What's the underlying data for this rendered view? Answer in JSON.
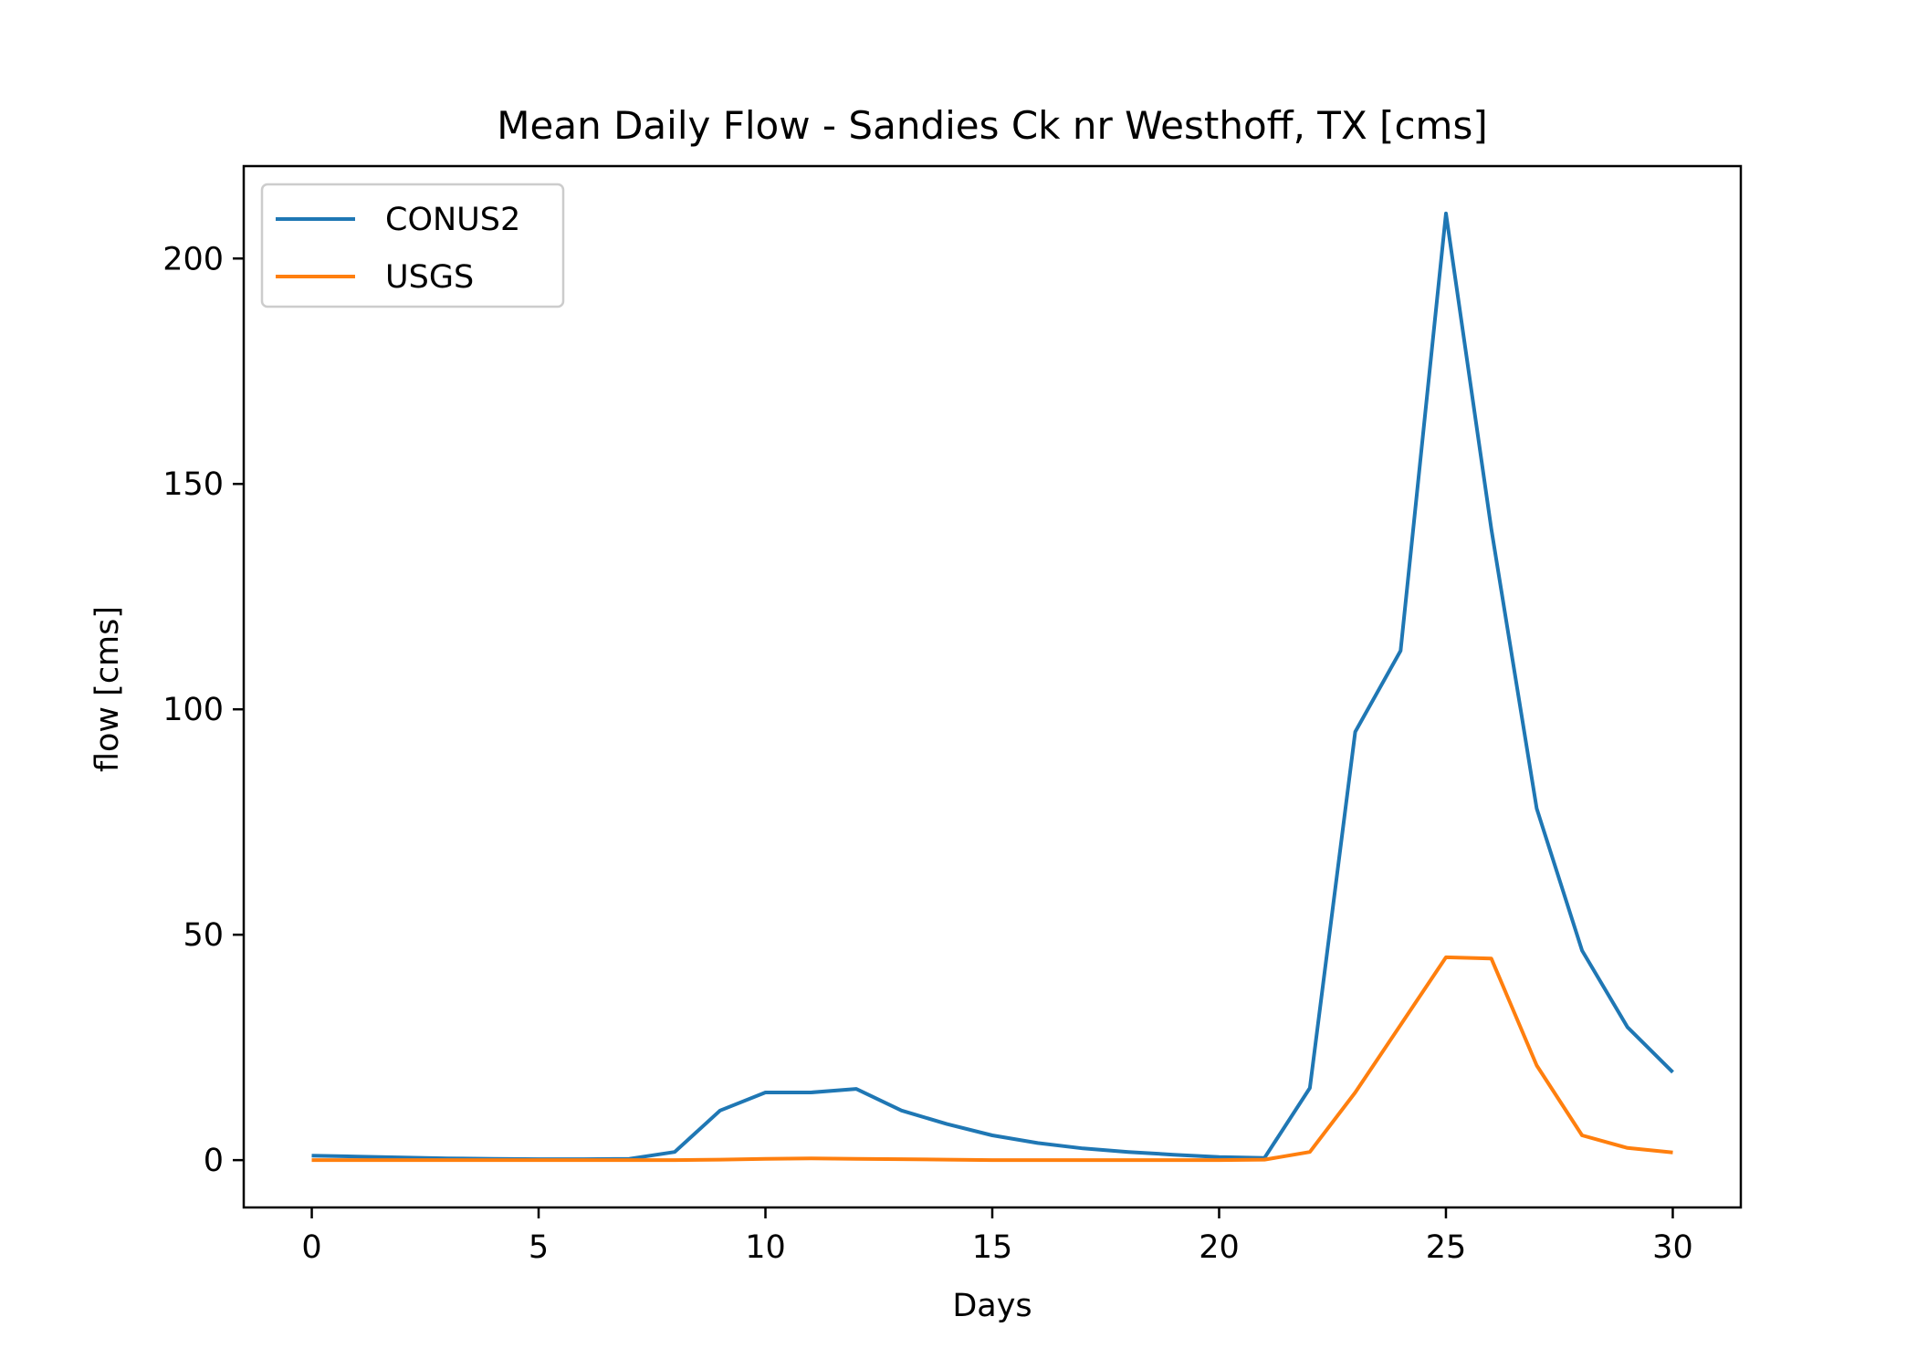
{
  "chart_data": {
    "type": "line",
    "title": "Mean Daily Flow - Sandies Ck nr Westhoff, TX [cms]",
    "xlabel": "Days",
    "ylabel": "flow [cms]",
    "xlim": [
      -1.5,
      31.5
    ],
    "ylim": [
      -10.5,
      220.5
    ],
    "xticks": [
      0,
      5,
      10,
      15,
      20,
      25,
      30
    ],
    "yticks": [
      0,
      50,
      100,
      150,
      200
    ],
    "grid": false,
    "legend_position": "top-left",
    "x": [
      0,
      1,
      2,
      3,
      4,
      5,
      6,
      7,
      8,
      9,
      10,
      11,
      12,
      13,
      14,
      15,
      16,
      17,
      18,
      19,
      20,
      21,
      22,
      23,
      24,
      25,
      26,
      27,
      28,
      29,
      30
    ],
    "series": [
      {
        "name": "CONUS2",
        "color": "#1f77b4",
        "values": [
          1.0,
          0.8,
          0.6,
          0.4,
          0.3,
          0.2,
          0.2,
          0.3,
          1.8,
          11.0,
          15.0,
          15.0,
          15.8,
          11.0,
          8.0,
          5.5,
          3.8,
          2.6,
          1.8,
          1.2,
          0.7,
          0.5,
          16.0,
          95.0,
          113.0,
          210.0,
          140.0,
          78.0,
          46.5,
          29.5,
          19.5
        ]
      },
      {
        "name": "USGS",
        "color": "#ff7f0e",
        "values": [
          0.0,
          0.0,
          0.0,
          0.0,
          0.0,
          0.0,
          0.0,
          0.0,
          0.0,
          0.1,
          0.3,
          0.4,
          0.3,
          0.2,
          0.1,
          0.0,
          0.0,
          0.0,
          0.0,
          0.0,
          0.0,
          0.1,
          1.8,
          15.0,
          30.0,
          45.0,
          44.7,
          21.0,
          5.5,
          2.7,
          1.7
        ]
      }
    ]
  }
}
